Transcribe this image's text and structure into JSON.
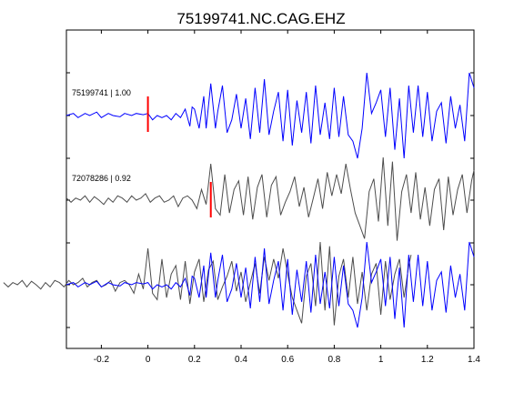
{
  "chart_data": {
    "type": "line",
    "title": "75199741.NC.CAG.EHZ",
    "xlabel": "",
    "ylabel": "",
    "xlim": [
      -0.35,
      1.4
    ],
    "x_ticks": [
      -0.2,
      0,
      0.2,
      0.4,
      0.6,
      0.8,
      1,
      1.2,
      1.4
    ],
    "x_tick_labels": [
      "-0.2",
      "0",
      "0.2",
      "0.4",
      "0.6",
      "0.8",
      "1",
      "1.2",
      "1.4"
    ],
    "grid": false,
    "colors": {
      "primary": "#0000ff",
      "secondary": "#4d4d4d",
      "pick": "#ff0000",
      "axis": "#000000"
    },
    "traces": [
      {
        "label": "75199741 | 1.00",
        "color": "#0000ff",
        "pick_time": 0.0,
        "times": [
          -0.35,
          -0.32,
          -0.3,
          -0.27,
          -0.25,
          -0.22,
          -0.2,
          -0.17,
          -0.15,
          -0.12,
          -0.1,
          -0.07,
          -0.05,
          -0.02,
          0.0,
          0.02,
          0.04,
          0.06,
          0.08,
          0.1,
          0.12,
          0.14,
          0.16,
          0.18,
          0.19,
          0.2,
          0.22,
          0.24,
          0.25,
          0.27,
          0.29,
          0.3,
          0.32,
          0.34,
          0.36,
          0.38,
          0.4,
          0.42,
          0.44,
          0.46,
          0.48,
          0.5,
          0.52,
          0.54,
          0.56,
          0.58,
          0.6,
          0.62,
          0.64,
          0.66,
          0.68,
          0.7,
          0.72,
          0.74,
          0.76,
          0.78,
          0.8,
          0.82,
          0.84,
          0.86,
          0.88,
          0.9,
          0.92,
          0.94,
          0.96,
          0.98,
          1.0,
          1.02,
          1.04,
          1.06,
          1.08,
          1.1,
          1.12,
          1.14,
          1.16,
          1.18,
          1.2,
          1.22,
          1.24,
          1.26,
          1.28,
          1.3,
          1.32,
          1.34,
          1.36,
          1.38,
          1.4
        ],
        "values": [
          0.0,
          0.05,
          -0.05,
          0.05,
          0.0,
          0.08,
          -0.05,
          0.05,
          0.0,
          -0.03,
          0.05,
          0.0,
          0.05,
          0.02,
          0.05,
          -0.1,
          0.0,
          -0.05,
          0.0,
          -0.1,
          0.05,
          -0.05,
          0.15,
          -0.25,
          0.2,
          0.15,
          -0.3,
          0.45,
          -0.3,
          0.75,
          -0.3,
          0.1,
          0.7,
          -0.4,
          -0.1,
          0.5,
          -0.3,
          0.4,
          -0.55,
          0.65,
          -0.4,
          0.85,
          -0.45,
          0.1,
          0.55,
          -0.6,
          0.6,
          -0.7,
          0.35,
          -0.4,
          0.55,
          -0.65,
          0.7,
          -0.45,
          0.3,
          -0.55,
          0.65,
          -0.5,
          0.45,
          -0.45,
          -0.6,
          -1.0,
          -0.3,
          1.0,
          0.05,
          0.3,
          0.6,
          -0.5,
          0.65,
          -0.8,
          0.4,
          -1.0,
          0.7,
          -0.4,
          0.7,
          -0.5,
          0.55,
          -0.6,
          0.1,
          0.3,
          -0.65,
          0.45,
          -0.3,
          0.25,
          -0.6,
          1.0,
          0.65
        ]
      },
      {
        "label": "72078286 | 0.92",
        "color": "#4d4d4d",
        "pick_time": 0.27,
        "times": [
          -0.35,
          -0.33,
          -0.31,
          -0.29,
          -0.27,
          -0.25,
          -0.23,
          -0.21,
          -0.19,
          -0.17,
          -0.15,
          -0.13,
          -0.11,
          -0.09,
          -0.07,
          -0.05,
          -0.03,
          -0.01,
          0.01,
          0.03,
          0.05,
          0.07,
          0.09,
          0.11,
          0.13,
          0.15,
          0.17,
          0.19,
          0.21,
          0.23,
          0.25,
          0.27,
          0.29,
          0.31,
          0.33,
          0.35,
          0.37,
          0.39,
          0.41,
          0.43,
          0.45,
          0.47,
          0.49,
          0.51,
          0.53,
          0.55,
          0.57,
          0.59,
          0.61,
          0.63,
          0.65,
          0.67,
          0.69,
          0.71,
          0.73,
          0.75,
          0.77,
          0.79,
          0.81,
          0.83,
          0.85,
          0.87,
          0.89,
          0.91,
          0.93,
          0.95,
          0.97,
          0.99,
          1.01,
          1.03,
          1.05,
          1.07,
          1.09,
          1.11,
          1.13,
          1.15,
          1.17,
          1.19,
          1.21,
          1.23,
          1.25,
          1.27,
          1.29,
          1.31,
          1.33,
          1.35,
          1.37,
          1.39,
          1.4
        ],
        "values": [
          0.05,
          -0.05,
          0.05,
          0.0,
          0.1,
          -0.05,
          0.08,
          0.0,
          -0.1,
          0.05,
          -0.05,
          0.1,
          0.05,
          -0.05,
          0.1,
          0.0,
          0.05,
          0.15,
          -0.05,
          0.05,
          0.1,
          -0.05,
          0.0,
          0.1,
          -0.15,
          0.05,
          0.1,
          0.0,
          -0.2,
          0.25,
          -0.1,
          0.85,
          -0.2,
          -0.35,
          0.6,
          -0.3,
          0.25,
          0.45,
          -0.35,
          0.55,
          -0.45,
          0.3,
          0.6,
          -0.4,
          0.35,
          0.55,
          -0.35,
          -0.05,
          0.2,
          0.55,
          -0.15,
          0.3,
          -0.4,
          0.05,
          0.5,
          -0.2,
          0.65,
          0.1,
          0.6,
          0.15,
          0.85,
          0.25,
          -0.3,
          -0.6,
          -0.9,
          0.2,
          0.5,
          -0.5,
          1.0,
          -0.6,
          0.9,
          -0.95,
          0.2,
          0.6,
          -0.3,
          0.65,
          -0.45,
          0.3,
          -0.6,
          0.25,
          0.5,
          -0.7,
          0.55,
          -0.35,
          0.25,
          0.6,
          -0.3,
          0.45,
          0.7
        ]
      }
    ]
  }
}
